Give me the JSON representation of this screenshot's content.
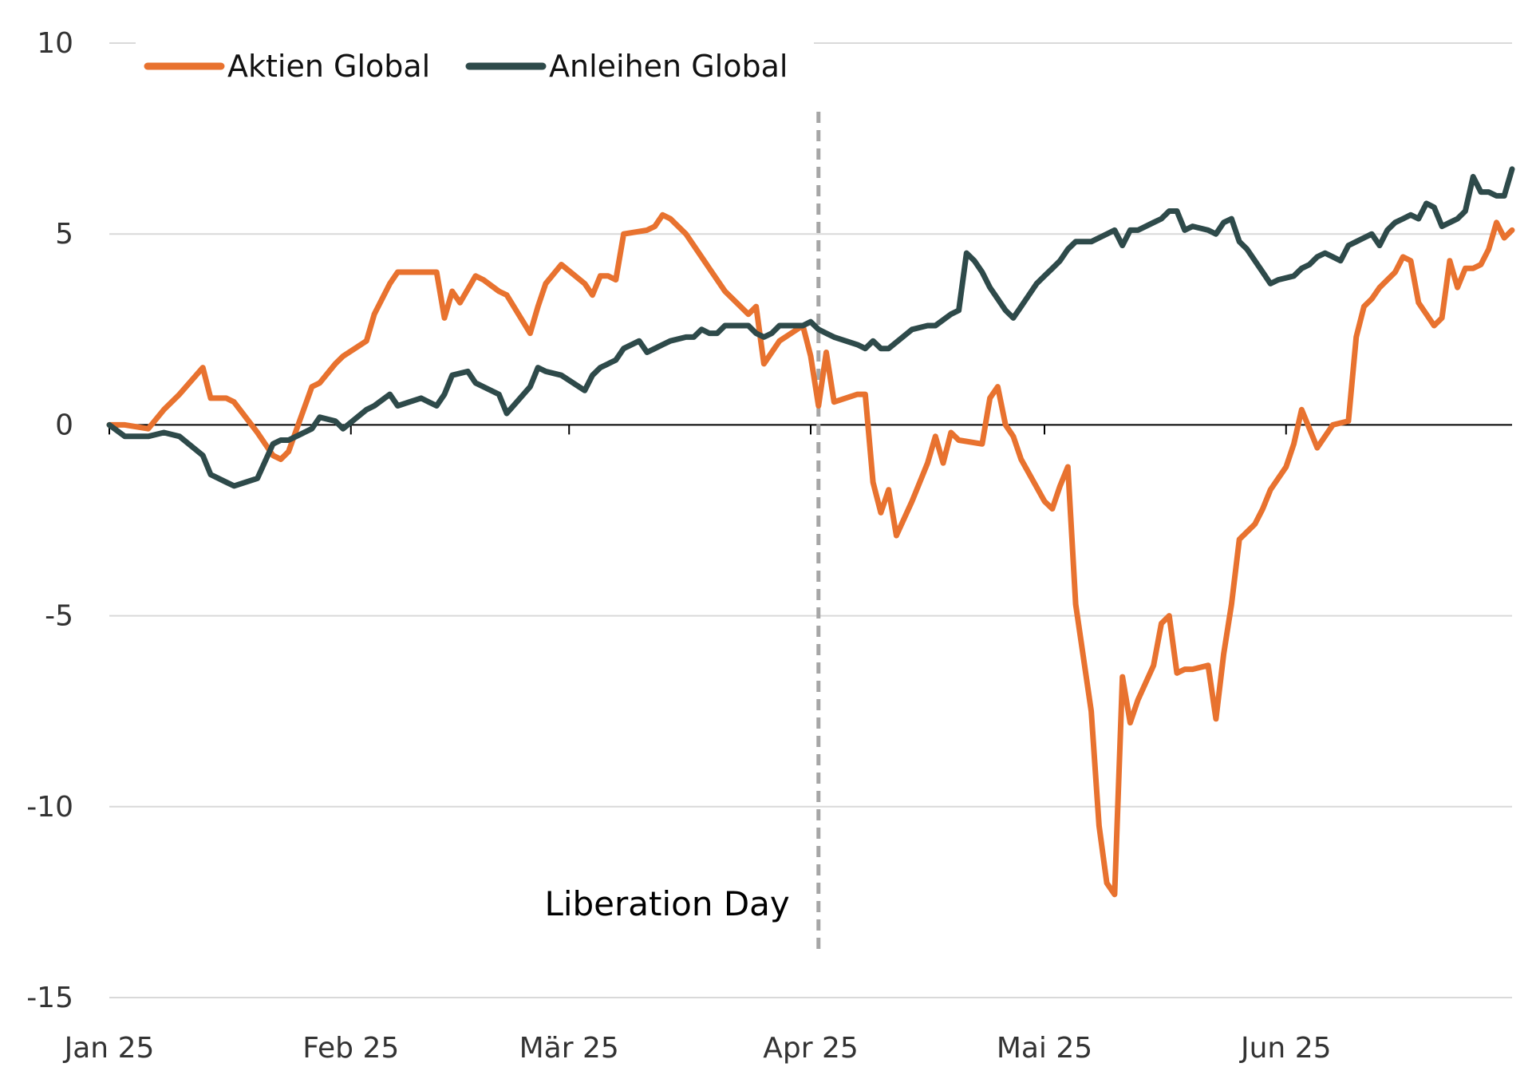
{
  "chart_data": {
    "type": "line",
    "title": "",
    "xlabel": "",
    "ylabel": "",
    "xlim": [
      "2025-01-01",
      "2025-06-30"
    ],
    "ylim": [
      -15,
      10
    ],
    "y_ticks": [
      10,
      5,
      0,
      -5,
      -10,
      -15
    ],
    "y_tick_labels": [
      "10",
      "5",
      "0",
      "-5",
      "-10",
      "-15"
    ],
    "x_tick_labels": [
      "Jan 25",
      "Feb 25",
      "Mär 25",
      "Apr 25",
      "Mai 25",
      "Jun 25"
    ],
    "x_tick_dates": [
      "2025-01-01",
      "2025-02-01",
      "2025-03-01",
      "2025-04-01",
      "2025-05-01",
      "2025-06-01"
    ],
    "grid": "horizontal",
    "legend_position": "top-left",
    "colors": {
      "aktien": "#E8722F",
      "anleihen": "#2E4A4A",
      "grid": "#D9D9D9",
      "zero_line": "#000000",
      "marker_line": "#A6A6A6",
      "text": "#333333"
    },
    "series": [
      {
        "name": "Aktien Global",
        "color": "#E8722F",
        "points": [
          [
            "2025-01-01",
            0.0
          ],
          [
            "2025-01-03",
            0.0
          ],
          [
            "2025-01-06",
            -0.1
          ],
          [
            "2025-01-08",
            0.4
          ],
          [
            "2025-01-10",
            0.8
          ],
          [
            "2025-01-13",
            1.5
          ],
          [
            "2025-01-14",
            0.7
          ],
          [
            "2025-01-16",
            0.7
          ],
          [
            "2025-01-17",
            0.6
          ],
          [
            "2025-01-20",
            -0.2
          ],
          [
            "2025-01-22",
            -0.8
          ],
          [
            "2025-01-23",
            -0.9
          ],
          [
            "2025-01-24",
            -0.7
          ],
          [
            "2025-01-27",
            1.0
          ],
          [
            "2025-01-28",
            1.1
          ],
          [
            "2025-01-30",
            1.6
          ],
          [
            "2025-01-31",
            1.8
          ],
          [
            "2025-02-03",
            2.2
          ],
          [
            "2025-02-04",
            2.9
          ],
          [
            "2025-02-06",
            3.7
          ],
          [
            "2025-02-07",
            4.0
          ],
          [
            "2025-02-10",
            4.0
          ],
          [
            "2025-02-11",
            4.0
          ],
          [
            "2025-02-12",
            4.0
          ],
          [
            "2025-02-13",
            2.8
          ],
          [
            "2025-02-14",
            3.5
          ],
          [
            "2025-02-15",
            3.2
          ],
          [
            "2025-02-17",
            3.9
          ],
          [
            "2025-02-18",
            3.8
          ],
          [
            "2025-02-20",
            3.5
          ],
          [
            "2025-02-21",
            3.4
          ],
          [
            "2025-02-24",
            2.4
          ],
          [
            "2025-02-25",
            3.1
          ],
          [
            "2025-02-26",
            3.7
          ],
          [
            "2025-02-28",
            4.2
          ],
          [
            "2025-03-03",
            3.7
          ],
          [
            "2025-03-04",
            3.4
          ],
          [
            "2025-03-05",
            3.9
          ],
          [
            "2025-03-06",
            3.9
          ],
          [
            "2025-03-07",
            3.8
          ],
          [
            "2025-03-08",
            5.0
          ],
          [
            "2025-03-11",
            5.1
          ],
          [
            "2025-03-12",
            5.2
          ],
          [
            "2025-03-13",
            5.5
          ],
          [
            "2025-03-14",
            5.4
          ],
          [
            "2025-03-16",
            5.0
          ],
          [
            "2025-03-17",
            4.7
          ],
          [
            "2025-03-19",
            4.1
          ],
          [
            "2025-03-21",
            3.5
          ],
          [
            "2025-03-24",
            2.9
          ],
          [
            "2025-03-25",
            3.1
          ],
          [
            "2025-03-26",
            1.6
          ],
          [
            "2025-03-28",
            2.2
          ],
          [
            "2025-03-31",
            2.6
          ],
          [
            "2025-04-01",
            1.8
          ],
          [
            "2025-04-02",
            0.5
          ],
          [
            "2025-04-03",
            1.9
          ],
          [
            "2025-04-04",
            0.6
          ],
          [
            "2025-04-07",
            0.8
          ],
          [
            "2025-04-08",
            0.8
          ],
          [
            "2025-04-09",
            -1.5
          ],
          [
            "2025-04-10",
            -2.3
          ],
          [
            "2025-04-11",
            -1.7
          ],
          [
            "2025-04-12",
            -2.9
          ],
          [
            "2025-04-14",
            -2.0
          ],
          [
            "2025-04-16",
            -1.0
          ],
          [
            "2025-04-17",
            -0.3
          ],
          [
            "2025-04-18",
            -1.0
          ],
          [
            "2025-04-19",
            -0.2
          ],
          [
            "2025-04-20",
            -0.4
          ],
          [
            "2025-04-23",
            -0.5
          ],
          [
            "2025-04-24",
            0.7
          ],
          [
            "2025-04-25",
            1.0
          ],
          [
            "2025-04-26",
            0.0
          ],
          [
            "2025-04-27",
            -0.3
          ],
          [
            "2025-04-28",
            -0.9
          ],
          [
            "2025-05-01",
            -2.0
          ],
          [
            "2025-05-02",
            -2.2
          ],
          [
            "2025-05-03",
            -1.6
          ],
          [
            "2025-05-04",
            -1.1
          ],
          [
            "2025-05-05",
            -4.7
          ],
          [
            "2025-05-07",
            -7.5
          ],
          [
            "2025-05-08",
            -10.5
          ],
          [
            "2025-05-09",
            -12.0
          ],
          [
            "2025-05-10",
            -12.3
          ],
          [
            "2025-05-11",
            -6.6
          ],
          [
            "2025-05-12",
            -7.8
          ],
          [
            "2025-05-13",
            -7.2
          ],
          [
            "2025-05-15",
            -6.3
          ],
          [
            "2025-05-16",
            -5.2
          ],
          [
            "2025-05-17",
            -5.0
          ],
          [
            "2025-05-18",
            -6.5
          ],
          [
            "2025-05-19",
            -6.4
          ],
          [
            "2025-05-20",
            -6.4
          ],
          [
            "2025-05-22",
            -6.3
          ],
          [
            "2025-05-23",
            -7.7
          ],
          [
            "2025-05-24",
            -6.0
          ],
          [
            "2025-05-25",
            -4.7
          ],
          [
            "2025-05-26",
            -3.0
          ],
          [
            "2025-05-28",
            -2.6
          ],
          [
            "2025-05-29",
            -2.2
          ],
          [
            "2025-05-30",
            -1.7
          ],
          [
            "2025-06-01",
            -1.1
          ],
          [
            "2025-06-02",
            -0.5
          ],
          [
            "2025-06-03",
            0.4
          ],
          [
            "2025-06-04",
            -0.1
          ],
          [
            "2025-06-05",
            -0.6
          ],
          [
            "2025-06-07",
            0.0
          ],
          [
            "2025-06-09",
            0.1
          ],
          [
            "2025-06-10",
            2.3
          ],
          [
            "2025-06-11",
            3.1
          ],
          [
            "2025-06-12",
            3.3
          ],
          [
            "2025-06-13",
            3.6
          ],
          [
            "2025-06-15",
            4.0
          ],
          [
            "2025-06-16",
            4.4
          ],
          [
            "2025-06-17",
            4.3
          ],
          [
            "2025-06-18",
            3.2
          ],
          [
            "2025-06-19",
            2.9
          ],
          [
            "2025-06-20",
            2.6
          ],
          [
            "2025-06-21",
            2.8
          ],
          [
            "2025-06-22",
            4.3
          ],
          [
            "2025-06-23",
            3.6
          ],
          [
            "2025-06-24",
            4.1
          ],
          [
            "2025-06-25",
            4.1
          ],
          [
            "2025-06-26",
            4.2
          ],
          [
            "2025-06-27",
            4.6
          ],
          [
            "2025-06-28",
            5.3
          ],
          [
            "2025-06-29",
            4.9
          ],
          [
            "2025-06-30",
            5.1
          ]
        ]
      },
      {
        "name": "Anleihen Global",
        "color": "#2E4A4A",
        "points": [
          [
            "2025-01-01",
            0.0
          ],
          [
            "2025-01-03",
            -0.3
          ],
          [
            "2025-01-06",
            -0.3
          ],
          [
            "2025-01-08",
            -0.2
          ],
          [
            "2025-01-10",
            -0.3
          ],
          [
            "2025-01-13",
            -0.8
          ],
          [
            "2025-01-14",
            -1.3
          ],
          [
            "2025-01-16",
            -1.5
          ],
          [
            "2025-01-17",
            -1.6
          ],
          [
            "2025-01-20",
            -1.4
          ],
          [
            "2025-01-22",
            -0.5
          ],
          [
            "2025-01-23",
            -0.4
          ],
          [
            "2025-01-24",
            -0.4
          ],
          [
            "2025-01-27",
            -0.1
          ],
          [
            "2025-01-28",
            0.2
          ],
          [
            "2025-01-30",
            0.1
          ],
          [
            "2025-01-31",
            -0.1
          ],
          [
            "2025-02-03",
            0.4
          ],
          [
            "2025-02-04",
            0.5
          ],
          [
            "2025-02-06",
            0.8
          ],
          [
            "2025-02-07",
            0.5
          ],
          [
            "2025-02-10",
            0.7
          ],
          [
            "2025-02-11",
            0.6
          ],
          [
            "2025-02-12",
            0.5
          ],
          [
            "2025-02-13",
            0.8
          ],
          [
            "2025-02-14",
            1.3
          ],
          [
            "2025-02-16",
            1.4
          ],
          [
            "2025-02-17",
            1.1
          ],
          [
            "2025-02-18",
            1.0
          ],
          [
            "2025-02-20",
            0.8
          ],
          [
            "2025-02-21",
            0.3
          ],
          [
            "2025-02-24",
            1.0
          ],
          [
            "2025-02-25",
            1.5
          ],
          [
            "2025-02-26",
            1.4
          ],
          [
            "2025-02-28",
            1.3
          ],
          [
            "2025-03-03",
            0.9
          ],
          [
            "2025-03-04",
            1.3
          ],
          [
            "2025-03-05",
            1.5
          ],
          [
            "2025-03-06",
            1.6
          ],
          [
            "2025-03-07",
            1.7
          ],
          [
            "2025-03-08",
            2.0
          ],
          [
            "2025-03-10",
            2.2
          ],
          [
            "2025-03-11",
            1.9
          ],
          [
            "2025-03-12",
            2.0
          ],
          [
            "2025-03-13",
            2.1
          ],
          [
            "2025-03-14",
            2.2
          ],
          [
            "2025-03-16",
            2.3
          ],
          [
            "2025-03-17",
            2.3
          ],
          [
            "2025-03-18",
            2.5
          ],
          [
            "2025-03-19",
            2.4
          ],
          [
            "2025-03-20",
            2.4
          ],
          [
            "2025-03-21",
            2.6
          ],
          [
            "2025-03-24",
            2.6
          ],
          [
            "2025-03-25",
            2.4
          ],
          [
            "2025-03-26",
            2.3
          ],
          [
            "2025-03-27",
            2.4
          ],
          [
            "2025-03-28",
            2.6
          ],
          [
            "2025-03-31",
            2.6
          ],
          [
            "2025-04-01",
            2.7
          ],
          [
            "2025-04-02",
            2.5
          ],
          [
            "2025-04-03",
            2.4
          ],
          [
            "2025-04-04",
            2.3
          ],
          [
            "2025-04-07",
            2.1
          ],
          [
            "2025-04-08",
            2.0
          ],
          [
            "2025-04-09",
            2.2
          ],
          [
            "2025-04-10",
            2.0
          ],
          [
            "2025-04-11",
            2.0
          ],
          [
            "2025-04-14",
            2.5
          ],
          [
            "2025-04-16",
            2.6
          ],
          [
            "2025-04-17",
            2.6
          ],
          [
            "2025-04-19",
            2.9
          ],
          [
            "2025-04-20",
            3.0
          ],
          [
            "2025-04-21",
            4.5
          ],
          [
            "2025-04-22",
            4.3
          ],
          [
            "2025-04-23",
            4.0
          ],
          [
            "2025-04-24",
            3.6
          ],
          [
            "2025-04-25",
            3.3
          ],
          [
            "2025-04-26",
            3.0
          ],
          [
            "2025-04-27",
            2.8
          ],
          [
            "2025-04-28",
            3.1
          ],
          [
            "2025-04-29",
            3.4
          ],
          [
            "2025-04-30",
            3.7
          ],
          [
            "2025-05-01",
            3.9
          ],
          [
            "2025-05-02",
            4.1
          ],
          [
            "2025-05-03",
            4.3
          ],
          [
            "2025-05-04",
            4.6
          ],
          [
            "2025-05-05",
            4.8
          ],
          [
            "2025-05-07",
            4.8
          ],
          [
            "2025-05-08",
            4.9
          ],
          [
            "2025-05-09",
            5.0
          ],
          [
            "2025-05-10",
            5.1
          ],
          [
            "2025-05-11",
            4.7
          ],
          [
            "2025-05-12",
            5.1
          ],
          [
            "2025-05-13",
            5.1
          ],
          [
            "2025-05-15",
            5.3
          ],
          [
            "2025-05-16",
            5.4
          ],
          [
            "2025-05-17",
            5.6
          ],
          [
            "2025-05-18",
            5.6
          ],
          [
            "2025-05-19",
            5.1
          ],
          [
            "2025-05-20",
            5.2
          ],
          [
            "2025-05-22",
            5.1
          ],
          [
            "2025-05-23",
            5.0
          ],
          [
            "2025-05-24",
            5.3
          ],
          [
            "2025-05-25",
            5.4
          ],
          [
            "2025-05-26",
            4.8
          ],
          [
            "2025-05-27",
            4.6
          ],
          [
            "2025-05-29",
            4.0
          ],
          [
            "2025-05-30",
            3.7
          ],
          [
            "2025-05-31",
            3.8
          ],
          [
            "2025-06-02",
            3.9
          ],
          [
            "2025-06-03",
            4.1
          ],
          [
            "2025-06-04",
            4.2
          ],
          [
            "2025-06-05",
            4.4
          ],
          [
            "2025-06-06",
            4.5
          ],
          [
            "2025-06-07",
            4.4
          ],
          [
            "2025-06-08",
            4.3
          ],
          [
            "2025-06-09",
            4.7
          ],
          [
            "2025-06-10",
            4.8
          ],
          [
            "2025-06-11",
            4.9
          ],
          [
            "2025-06-12",
            5.0
          ],
          [
            "2025-06-13",
            4.7
          ],
          [
            "2025-06-14",
            5.1
          ],
          [
            "2025-06-15",
            5.3
          ],
          [
            "2025-06-16",
            5.4
          ],
          [
            "2025-06-17",
            5.5
          ],
          [
            "2025-06-18",
            5.4
          ],
          [
            "2025-06-19",
            5.8
          ],
          [
            "2025-06-20",
            5.7
          ],
          [
            "2025-06-21",
            5.2
          ],
          [
            "2025-06-22",
            5.3
          ],
          [
            "2025-06-23",
            5.4
          ],
          [
            "2025-06-24",
            5.6
          ],
          [
            "2025-06-25",
            6.5
          ],
          [
            "2025-06-26",
            6.1
          ],
          [
            "2025-06-27",
            6.1
          ],
          [
            "2025-06-28",
            6.0
          ],
          [
            "2025-06-29",
            6.0
          ],
          [
            "2025-06-30",
            6.7
          ]
        ]
      }
    ],
    "annotations": [
      {
        "label": "Liberation Day",
        "date": "2025-04-02",
        "style": "dashed-vertical-line"
      }
    ]
  }
}
